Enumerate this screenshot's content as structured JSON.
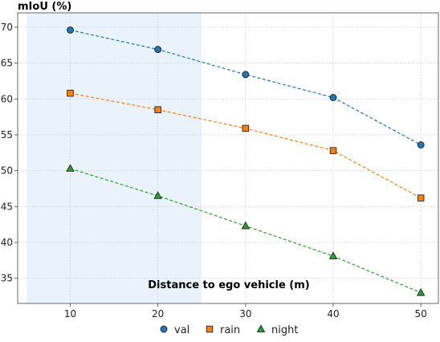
{
  "chart_data": {
    "type": "line",
    "title": "",
    "xlabel": "Distance to ego vehicle (m)",
    "ylabel": "mIoU (%)",
    "x": [
      10,
      20,
      30,
      40,
      50
    ],
    "xlim": [
      4,
      52
    ],
    "ylim": [
      31.5,
      72
    ],
    "xticks": [
      10,
      20,
      30,
      40,
      50
    ],
    "yticks": [
      35,
      40,
      45,
      50,
      55,
      60,
      65,
      70
    ],
    "grid": true,
    "grid_style": "dotted",
    "line_style": "dashed",
    "legend_position": "bottom-center",
    "highlight_region": {
      "x": [
        5,
        25
      ],
      "color": "#eaf3fb"
    },
    "series": [
      {
        "name": "val",
        "marker": "circle",
        "color": "#1f77b4",
        "values": [
          69.6,
          66.9,
          63.4,
          60.2,
          53.6
        ]
      },
      {
        "name": "rain",
        "marker": "square",
        "color": "#ff7f0e",
        "values": [
          60.8,
          58.5,
          55.9,
          52.8,
          46.2
        ]
      },
      {
        "name": "night",
        "marker": "triangle",
        "color": "#2ca02c",
        "values": [
          50.3,
          46.5,
          42.3,
          38.1,
          33.0
        ]
      }
    ]
  }
}
